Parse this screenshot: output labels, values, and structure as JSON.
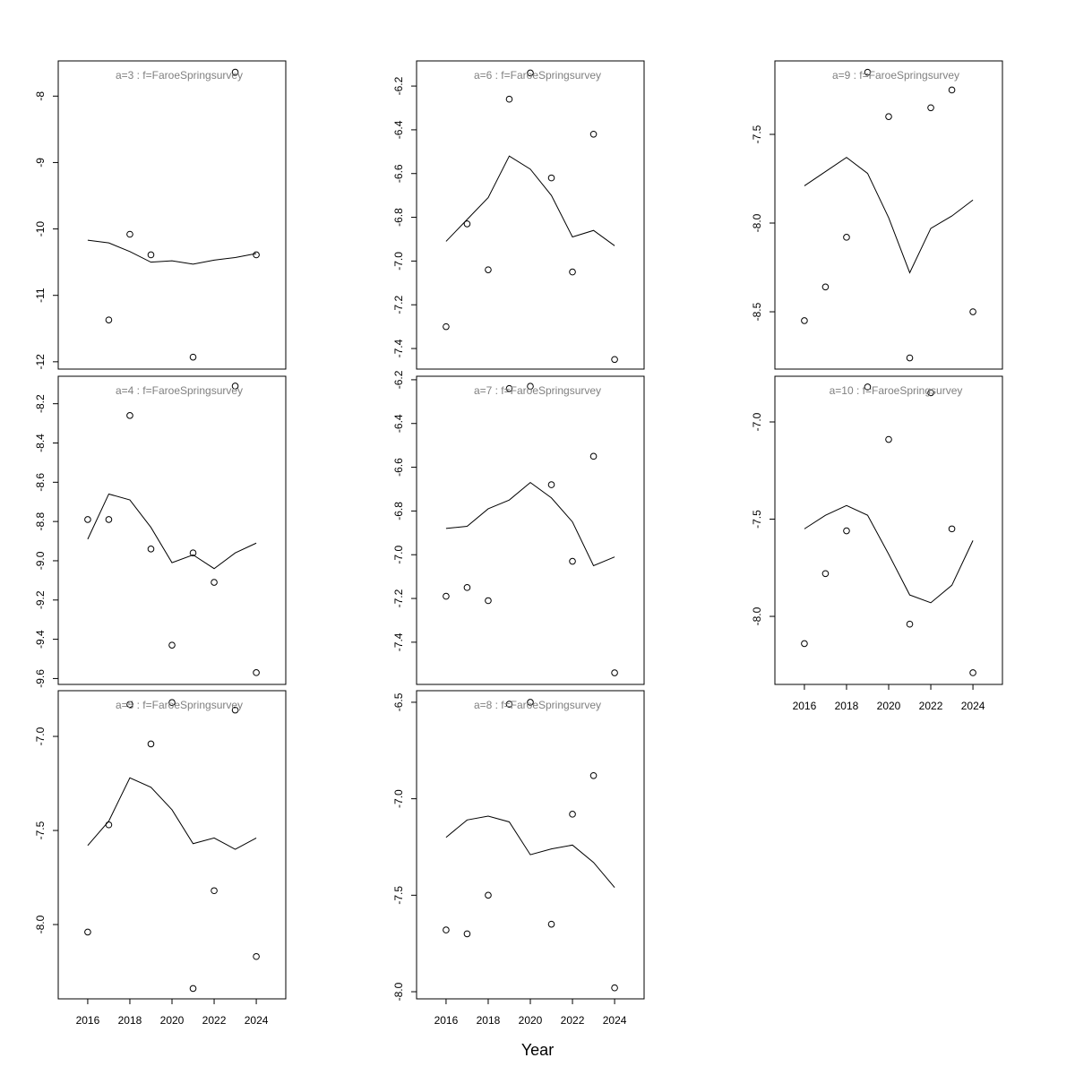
{
  "chart_data": {
    "type": "scatter",
    "xlabel": "Year",
    "xlim": [
      2014.6,
      2025.4
    ],
    "x_ticks": [
      2016,
      2018,
      2020,
      2022,
      2024
    ],
    "x": [
      2016,
      2017,
      2018,
      2019,
      2020,
      2021,
      2022,
      2023,
      2024
    ],
    "layout": "3x3 grid of panels, column-wise",
    "colors": {
      "points": "#000000",
      "line": "#000000",
      "panel_title": "#808080"
    },
    "panels": [
      {
        "title": "a=3  :  f=FaroeSpringsurvey",
        "ylim": [
          -12.11,
          -7.47
        ],
        "y_ticks": [
          -8,
          -9,
          -10,
          -11,
          -12
        ],
        "y_tick_labels": [
          "-8",
          "-9",
          "-10",
          "-11",
          "-12"
        ],
        "show_x_axis": false,
        "points": [
          null,
          -11.37,
          -10.08,
          -10.39,
          null,
          -11.93,
          null,
          -7.64,
          -10.39
        ],
        "line": [
          -10.17,
          -10.21,
          -10.34,
          -10.5,
          -10.48,
          -10.53,
          -10.47,
          -10.43,
          -10.37
        ]
      },
      {
        "title": "a=4  :  f=FaroeSpringsurvey",
        "ylim": [
          -9.63,
          -8.06
        ],
        "y_ticks": [
          -8.2,
          -8.4,
          -8.6,
          -8.8,
          -9.0,
          -9.2,
          -9.4,
          -9.6
        ],
        "y_tick_labels": [
          "-8.2",
          "-8.4",
          "-8.6",
          "-8.8",
          "-9.0",
          "-9.2",
          "-9.4",
          "-9.6"
        ],
        "show_x_axis": false,
        "points": [
          -8.79,
          -8.79,
          -8.26,
          -8.94,
          -9.43,
          -8.96,
          -9.11,
          -8.11,
          -9.57
        ],
        "line": [
          -8.89,
          -8.66,
          -8.69,
          -8.83,
          -9.01,
          -8.97,
          -9.04,
          -8.96,
          -8.91
        ]
      },
      {
        "title": "a=5  :  f=FaroeSpringsurvey",
        "ylim": [
          -8.395,
          -6.757
        ],
        "y_ticks": [
          -7.0,
          -7.5,
          -8.0
        ],
        "y_tick_labels": [
          "-7.0",
          "-7.5",
          "-8.0"
        ],
        "show_x_axis": true,
        "points": [
          -8.04,
          -7.47,
          -6.83,
          -7.04,
          -6.82,
          -8.34,
          -7.82,
          -6.86,
          -8.17
        ],
        "line": [
          -7.58,
          -7.45,
          -7.22,
          -7.27,
          -7.39,
          -7.57,
          -7.54,
          -7.6,
          -7.54
        ]
      },
      {
        "title": "a=6  :  f=FaroeSpringsurvey",
        "ylim": [
          -7.494,
          -6.085
        ],
        "y_ticks": [
          -6.2,
          -6.4,
          -6.6,
          -6.8,
          -7.0,
          -7.2,
          -7.4
        ],
        "y_tick_labels": [
          "-6.2",
          "-6.4",
          "-6.6",
          "-6.8",
          "-7.0",
          "-7.2",
          "-7.4"
        ],
        "show_x_axis": false,
        "points": [
          -7.3,
          -6.83,
          -7.04,
          -6.26,
          -6.14,
          -6.62,
          -7.05,
          -6.42,
          -7.45
        ],
        "line": [
          -6.91,
          -6.81,
          -6.71,
          -6.52,
          -6.58,
          -6.7,
          -6.89,
          -6.86,
          -6.93
        ]
      },
      {
        "title": "a=7  :  f=FaroeSpringsurvey",
        "ylim": [
          -7.593,
          -6.184
        ],
        "y_ticks": [
          -6.2,
          -6.4,
          -6.6,
          -6.8,
          -7.0,
          -7.2,
          -7.4
        ],
        "y_tick_labels": [
          "-6.2",
          "-6.4",
          "-6.6",
          "-6.8",
          "-7.0",
          "-7.2",
          "-7.4"
        ],
        "show_x_axis": false,
        "points": [
          -7.19,
          -7.15,
          -7.21,
          -6.24,
          -6.23,
          -6.68,
          -7.03,
          -6.55,
          -7.54
        ],
        "line": [
          -6.88,
          -6.87,
          -6.79,
          -6.75,
          -6.67,
          -6.74,
          -6.85,
          -7.05,
          -7.01
        ]
      },
      {
        "title": "a=8  :  f=FaroeSpringsurvey",
        "ylim": [
          -8.037,
          -6.44
        ],
        "y_ticks": [
          -6.5,
          -7.0,
          -7.5,
          -8.0
        ],
        "y_tick_labels": [
          "-6.5",
          "-7.0",
          "-7.5",
          "-8.0"
        ],
        "show_x_axis": true,
        "points": [
          -7.68,
          -7.7,
          -7.5,
          -6.51,
          -6.5,
          -7.65,
          -7.08,
          -6.88,
          -7.98
        ],
        "line": [
          -7.2,
          -7.11,
          -7.09,
          -7.12,
          -7.29,
          -7.26,
          -7.24,
          -7.33,
          -7.46
        ]
      },
      {
        "title": "a=9  :  f=FaroeSpringsurvey",
        "ylim": [
          -8.823,
          -7.086
        ],
        "y_ticks": [
          -7.5,
          -8.0,
          -8.5
        ],
        "y_tick_labels": [
          "-7.5",
          "-8.0",
          "-8.5"
        ],
        "show_x_axis": false,
        "points": [
          -8.55,
          -8.36,
          -8.08,
          -7.15,
          -7.4,
          -8.76,
          -7.35,
          -7.25,
          -8.5
        ],
        "line": [
          -7.79,
          -7.71,
          -7.63,
          -7.72,
          -7.97,
          -8.28,
          -8.03,
          -7.96,
          -7.87
        ]
      },
      {
        "title": "a=10  :  f=FaroeSpringsurvey",
        "ylim": [
          -8.35,
          -6.765
        ],
        "y_ticks": [
          -7.0,
          -7.5,
          -8.0
        ],
        "y_tick_labels": [
          "-7.0",
          "-7.5",
          "-8.0"
        ],
        "show_x_axis": true,
        "points": [
          -8.14,
          -7.78,
          -7.56,
          -6.82,
          -7.09,
          -8.04,
          -6.85,
          -7.55,
          -8.29
        ],
        "line": [
          -7.55,
          -7.48,
          -7.43,
          -7.48,
          -7.68,
          -7.89,
          -7.93,
          -7.84,
          -7.61
        ]
      }
    ]
  }
}
